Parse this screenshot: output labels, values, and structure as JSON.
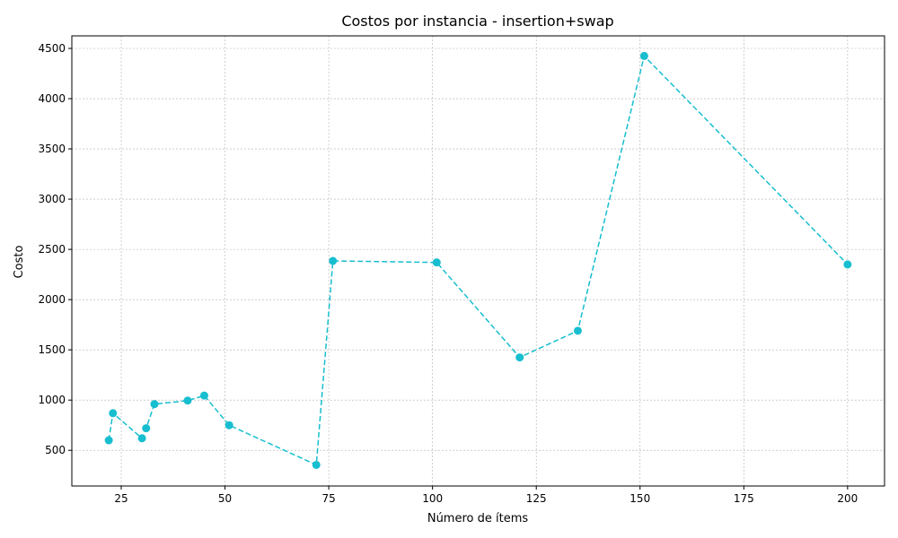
{
  "chart_data": {
    "type": "line",
    "title": "Costos por instancia - insertion+swap",
    "xlabel": "Número de ítems",
    "ylabel": "Costo",
    "xlim": [
      13.1,
      208.9
    ],
    "ylim": [
      145,
      4625
    ],
    "xticks": [
      25,
      50,
      75,
      100,
      125,
      150,
      175,
      200
    ],
    "yticks": [
      500,
      1000,
      1500,
      2000,
      2500,
      3000,
      3500,
      4000,
      4500
    ],
    "grid": true,
    "line_style": "dashed",
    "marker": "circle",
    "color": "#17becf",
    "series": [
      {
        "points": [
          {
            "x": 22,
            "y": 600
          },
          {
            "x": 23,
            "y": 870
          },
          {
            "x": 30,
            "y": 620
          },
          {
            "x": 31,
            "y": 720
          },
          {
            "x": 33,
            "y": 960
          },
          {
            "x": 41,
            "y": 995
          },
          {
            "x": 45,
            "y": 1045
          },
          {
            "x": 51,
            "y": 750
          },
          {
            "x": 72,
            "y": 355
          },
          {
            "x": 76,
            "y": 2385
          },
          {
            "x": 101,
            "y": 2370
          },
          {
            "x": 121,
            "y": 1425
          },
          {
            "x": 135,
            "y": 1690
          },
          {
            "x": 151,
            "y": 4425
          },
          {
            "x": 200,
            "y": 2350
          }
        ]
      }
    ]
  }
}
